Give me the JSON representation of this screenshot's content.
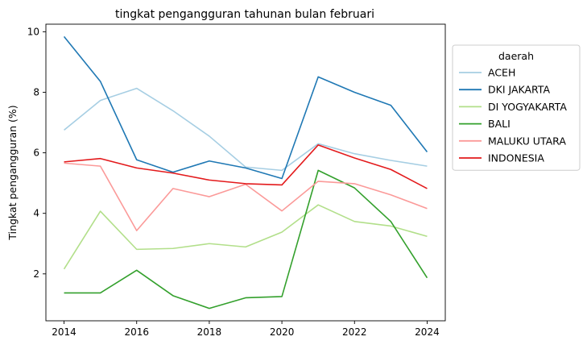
{
  "chart_data": {
    "type": "line",
    "title": "tingkat pengangguran tahunan bulan februari",
    "xlabel": "",
    "ylabel": "Tingkat pengangguran (%)",
    "x": [
      2014,
      2015,
      2016,
      2017,
      2018,
      2019,
      2020,
      2021,
      2022,
      2023,
      2024
    ],
    "xticks": [
      2014,
      2016,
      2018,
      2020,
      2022,
      2024
    ],
    "yticks": [
      2,
      4,
      6,
      8,
      10
    ],
    "xlim": [
      2013.5,
      2024.5
    ],
    "ylim": [
      0.45,
      10.25
    ],
    "grid": false,
    "legend": {
      "title": "daerah",
      "placement": "outside-right"
    },
    "series": [
      {
        "name": "ACEH",
        "color": "#a6cee3",
        "values": [
          6.75,
          7.73,
          8.13,
          7.39,
          6.55,
          5.53,
          5.42,
          6.3,
          5.97,
          5.75,
          5.56
        ]
      },
      {
        "name": "DKI JAKARTA",
        "color": "#1f78b4",
        "values": [
          9.84,
          8.36,
          5.77,
          5.36,
          5.73,
          5.5,
          5.15,
          8.51,
          8.0,
          7.57,
          6.03
        ]
      },
      {
        "name": "DI YOGYAKARTA",
        "color": "#b2df8a",
        "values": [
          2.16,
          4.07,
          2.81,
          2.84,
          3.0,
          2.89,
          3.38,
          4.28,
          3.73,
          3.58,
          3.24
        ]
      },
      {
        "name": "BALI",
        "color": "#33a02c",
        "values": [
          1.37,
          1.37,
          2.12,
          1.28,
          0.86,
          1.21,
          1.25,
          5.42,
          4.84,
          3.73,
          1.87
        ]
      },
      {
        "name": "MALUKU UTARA",
        "color": "#fb9a99",
        "values": [
          5.66,
          5.56,
          3.43,
          4.82,
          4.55,
          4.96,
          4.08,
          5.06,
          4.98,
          4.61,
          4.16
        ]
      },
      {
        "name": "INDONESIA",
        "color": "#e31a1c",
        "values": [
          5.7,
          5.81,
          5.5,
          5.33,
          5.1,
          4.98,
          4.94,
          6.26,
          5.83,
          5.45,
          4.82
        ]
      }
    ]
  }
}
